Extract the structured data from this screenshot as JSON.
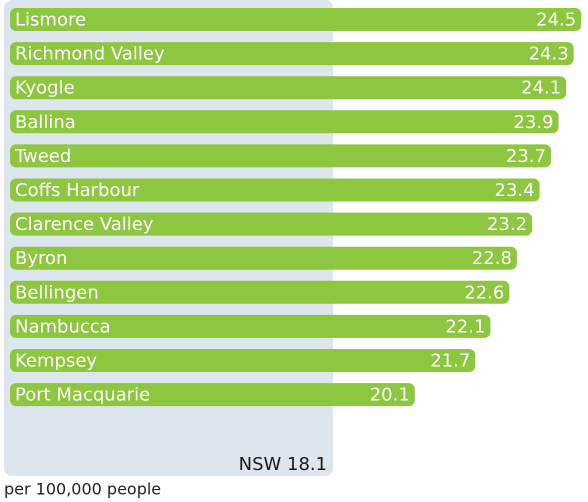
{
  "chart_data": {
    "type": "hbar",
    "categories": [
      "Lismore",
      "Richmond Valley",
      "Kyogle",
      "Ballina",
      "Tweed",
      "Coffs Harbour",
      "Clarence Valley",
      "Byron",
      "Bellingen",
      "Nambucca",
      "Kempsey",
      "Port Macquarie"
    ],
    "values": [
      24.5,
      24.3,
      24.1,
      23.9,
      23.7,
      23.4,
      23.2,
      22.8,
      22.6,
      22.1,
      21.7,
      20.1
    ],
    "color": "#8dc63f",
    "xlim": [
      9.4,
      24.6
    ],
    "reference": {
      "value": 18.1,
      "label": "NSW 18.1",
      "color": "#dce6ec"
    },
    "footnote": "per 100,000 people"
  }
}
